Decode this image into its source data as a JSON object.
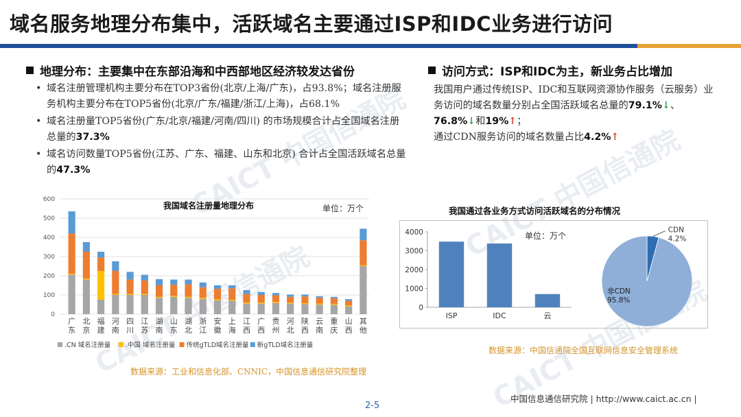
{
  "title": "域名服务地理分布集中，活跃域名主要通过ISP和IDC业务进行访问",
  "left_section": {
    "heading": "地理分布：主要集中在东部沿海和中西部地区经济较发达省份",
    "bullets": [
      {
        "text": "域名注册管理机构主要分布在TOP3省份(北京/上海/广东)，占93.8%；域名注册服务机构主要分布在TOP5省份(北京/广东/福建/浙江/上海)，占68.1%",
        "em": ""
      },
      {
        "text": "域名注册量TOP5省份(广东/北京/福建/河南/四川) 的市场规模合计占全国域名注册总量的",
        "em": "37.3%"
      },
      {
        "text": "域名访问数量TOP5省份(江苏、广东、福建、山东和北京) 合计占全国活跃域名总量的",
        "em": "47.3%"
      }
    ]
  },
  "right_section": {
    "heading": "访问方式：ISP和IDC为主，新业务占比增加",
    "para_1": "我国用户通过传统ISP、IDC和互联网资源协作服务（云服务）业务访问的域名数量分别占全国活跃域名总量的",
    "val_1": "79.1%",
    "sep_1": "、",
    "val_2": "76.8%",
    "sep_2": "和",
    "val_3": "19%",
    "tail_1": "；",
    "para_2": "通过CDN服务访问的域名数量占比",
    "val_4": "4.2%",
    "arrow_down": "↓",
    "arrow_up": "↑"
  },
  "chart_data": [
    {
      "type": "bar",
      "stacked": true,
      "title": "我国域名注册量地理分布",
      "unit_label": "单位：万个",
      "ylim": [
        0,
        600
      ],
      "yticks": [
        0,
        100,
        200,
        300,
        400,
        500,
        600
      ],
      "categories": [
        "广东",
        "北京",
        "福建",
        "河南",
        "四川",
        "江苏",
        "湖南",
        "山东",
        "湖北",
        "浙江",
        "安徽",
        "上海",
        "江西",
        "广西",
        "贵州",
        "河北",
        "陕西",
        "云南",
        "重庆",
        "山西",
        "其他"
      ],
      "series": [
        {
          "name": ".CN 域名注册量",
          "color": "#a6a6a6",
          "values": [
            205,
            180,
            75,
            100,
            100,
            100,
            85,
            90,
            85,
            80,
            72,
            70,
            55,
            55,
            58,
            55,
            52,
            50,
            48,
            40,
            250
          ]
        },
        {
          "name": ".中国 域名注册量",
          "color": "#ffc000",
          "values": [
            5,
            5,
            150,
            5,
            5,
            5,
            5,
            5,
            5,
            5,
            5,
            5,
            5,
            5,
            5,
            5,
            5,
            5,
            5,
            5,
            5
          ]
        },
        {
          "name": "传统gTLD域名注册量",
          "color": "#ed7d31",
          "values": [
            210,
            140,
            70,
            120,
            75,
            70,
            60,
            58,
            65,
            55,
            55,
            60,
            45,
            40,
            35,
            30,
            35,
            30,
            30,
            25,
            130
          ]
        },
        {
          "name": "新gTLD域名注册量",
          "color": "#5b9bd5",
          "values": [
            115,
            50,
            30,
            50,
            40,
            30,
            32,
            27,
            25,
            25,
            18,
            15,
            20,
            15,
            12,
            12,
            10,
            8,
            7,
            8,
            60
          ]
        }
      ]
    },
    {
      "type": "bar",
      "title": "我国通过各业务方式访问活跃域名的分布情况",
      "unit_label": "单位：万个",
      "ylim": [
        0,
        4000
      ],
      "yticks": [
        0,
        1000,
        2000,
        3000,
        4000
      ],
      "categories": [
        "ISP",
        "IDC",
        "云"
      ],
      "values": [
        3480,
        3380,
        700
      ],
      "color": "#4f81bd"
    },
    {
      "type": "pie",
      "slices": [
        {
          "label": "CDN",
          "pct_label": "4.2%",
          "value": 4.2,
          "color": "#2e6db4"
        },
        {
          "label": "非CDN",
          "pct_label": "95.8%",
          "value": 95.8,
          "color": "#8fafd8"
        }
      ]
    }
  ],
  "source_left": "数据来源：工业和信息化部、CNNIC，中国信息通信研究院整理",
  "source_right": "数据来源：中国信通院全国互联网信息安全管理系统",
  "footer": "中国信息通信研究院  |  http://www.caict.ac.cn  |",
  "page_number": "2-5",
  "watermark": "CAICT 中国信通院"
}
